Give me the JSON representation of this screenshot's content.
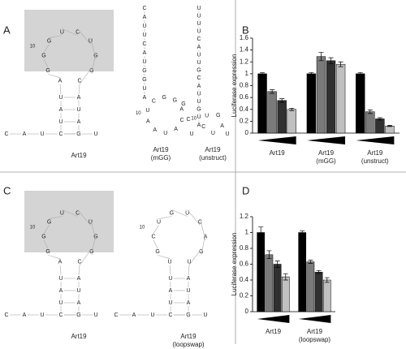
{
  "panel_labels": [
    "A",
    "B",
    "C",
    "D"
  ],
  "structures": [
    {
      "number_label": "10",
      "caption": "Art19",
      "bottom": [
        "C",
        "A",
        "U",
        "C",
        "G",
        "U"
      ],
      "stem": [
        [
          "C",
          "G"
        ],
        [
          "U",
          "A"
        ],
        [
          "A",
          "U"
        ],
        [
          "U",
          "A"
        ]
      ],
      "loop": [
        "A",
        "G",
        "G",
        "G",
        "U",
        "C",
        "U",
        "G",
        "G",
        "C"
      ]
    },
    {
      "number_label": "10",
      "caption": "Art19\n(mGG)",
      "column": [
        "C",
        "A",
        "U",
        "U",
        "C",
        "A",
        "U",
        "G",
        "G",
        "U",
        "A"
      ],
      "loop": [
        "A",
        "U",
        "C",
        "G",
        "G",
        "A",
        "C",
        "A",
        "U",
        "A"
      ],
      "tail": [
        "G",
        "C",
        "U"
      ]
    },
    {
      "number_label": "10",
      "caption": "Art19\n(unstruct)",
      "column": [
        "U",
        "U",
        "U",
        "U",
        "C",
        "A",
        "U",
        "U",
        "G",
        "C",
        "A",
        "U",
        "U",
        "G",
        "U",
        "A"
      ],
      "loop": [
        "C",
        "U",
        "G",
        "A",
        "U"
      ],
      "tail": [
        "U"
      ]
    },
    {
      "number_label": "10",
      "caption": "Art19",
      "bottom": [
        "C",
        "A",
        "U",
        "C",
        "G",
        "U"
      ],
      "stem": [
        [
          "C",
          "G"
        ],
        [
          "U",
          "A"
        ],
        [
          "A",
          "U"
        ],
        [
          "U",
          "A"
        ]
      ],
      "loop": [
        "A",
        "G",
        "G",
        "G",
        "U",
        "C",
        "U",
        "G",
        "G",
        "C"
      ]
    },
    {
      "number_label": "10",
      "caption": "Art19\n(loopswap)",
      "bottom": [
        "C",
        "A",
        "U",
        "C",
        "G",
        "U"
      ],
      "stem": [
        [
          "C",
          "G"
        ],
        [
          "U",
          "A"
        ],
        [
          "A",
          "U"
        ],
        [
          "U",
          "A"
        ]
      ],
      "loop": [
        "U",
        "G",
        "C",
        "U",
        "G",
        "U",
        "C",
        "A",
        "G",
        "U"
      ]
    }
  ],
  "chart_data": [
    {
      "type": "bar",
      "ylabel": "Luciferase expression",
      "categories": [
        "Art19",
        "Art19\n(mGG)",
        "Art19\n(unstruct)"
      ],
      "series": [
        {
          "color": "#000000",
          "values": [
            1,
            1,
            1
          ],
          "errors": [
            0.02,
            0.02,
            0.02
          ]
        },
        {
          "color": "#7a7a7a",
          "values": [
            0.7,
            1.29,
            0.36
          ],
          "errors": [
            0.03,
            0.07,
            0.03
          ]
        },
        {
          "color": "#303030",
          "values": [
            0.55,
            1.22,
            0.24
          ],
          "errors": [
            0.03,
            0.05,
            0.02
          ]
        },
        {
          "color": "#c0c0c0",
          "values": [
            0.4,
            1.16,
            0.12
          ],
          "errors": [
            0.02,
            0.04,
            0.01
          ]
        }
      ],
      "ylim": [
        0,
        1.6
      ],
      "yticks": [
        0,
        0.2,
        0.4,
        0.6,
        0.8,
        1,
        1.2,
        1.4,
        1.6
      ]
    },
    {
      "type": "bar",
      "ylabel": "Luciferase expression",
      "categories": [
        "Art19",
        "Art19\n(loopswap)"
      ],
      "series": [
        {
          "color": "#000000",
          "values": [
            1,
            1
          ],
          "errors": [
            0.07,
            0.02
          ]
        },
        {
          "color": "#7a7a7a",
          "values": [
            0.72,
            0.63
          ],
          "errors": [
            0.05,
            0.02
          ]
        },
        {
          "color": "#303030",
          "values": [
            0.6,
            0.5
          ],
          "errors": [
            0.04,
            0.02
          ]
        },
        {
          "color": "#c0c0c0",
          "values": [
            0.44,
            0.4
          ],
          "errors": [
            0.04,
            0.03
          ]
        }
      ],
      "ylim": [
        0,
        1.2
      ],
      "yticks": [
        0,
        0.2,
        0.4,
        0.6,
        0.8,
        1,
        1.2
      ]
    }
  ]
}
